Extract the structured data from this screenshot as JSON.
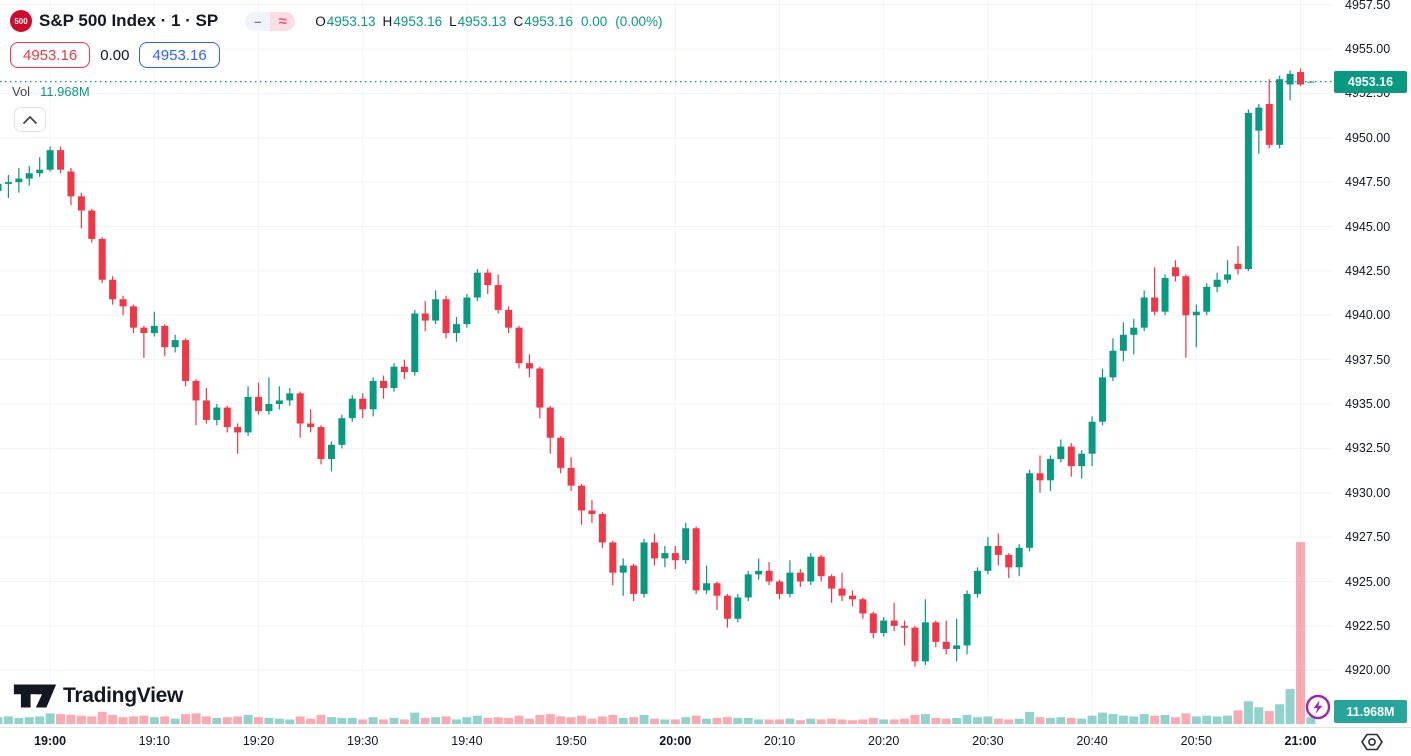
{
  "colors": {
    "up": "#089981",
    "down": "#f23645",
    "vol_up": "rgba(38,166,154,0.5)",
    "vol_down": "rgba(242,54,69,0.42)",
    "grid": "#f0f3fa",
    "axis_text": "#131722",
    "accent_blue": "#2962ff",
    "price_badge_bg": "#089981",
    "volume_badge_bg": "#26a69a",
    "current_price_line": "#089981",
    "logo_red": "#cf0a2c",
    "purple_icon": "#9c27b0"
  },
  "header": {
    "symbol_logo": "500",
    "title": "S&P 500 Index · 1 · SP",
    "pill_minus_icon": "–",
    "pill_wave_icon": "≈",
    "ohlc": {
      "o_label": "O",
      "o_value": "4953.13",
      "h_label": "H",
      "h_value": "4953.16",
      "l_label": "L",
      "l_value": "4953.13",
      "c_label": "C",
      "c_value": "4953.16",
      "change": "0.00",
      "change_pct": "(0.00%)"
    },
    "sell_price": "4953.16",
    "spread": "0.00",
    "buy_price": "4953.16",
    "vol_label": "Vol",
    "vol_value": "11.968M"
  },
  "watermark": "TradingView",
  "price_scale": {
    "current_badge": "4953.16",
    "volume_badge": "11.968M",
    "ticks": [
      {
        "label": "4957.50",
        "price": 4957.5
      },
      {
        "label": "4955.00",
        "price": 4955.0
      },
      {
        "label": "4952.50",
        "price": 4952.5
      },
      {
        "label": "4950.00",
        "price": 4950.0
      },
      {
        "label": "4947.50",
        "price": 4947.5
      },
      {
        "label": "4945.00",
        "price": 4945.0
      },
      {
        "label": "4942.50",
        "price": 4942.5
      },
      {
        "label": "4940.00",
        "price": 4940.0
      },
      {
        "label": "4937.50",
        "price": 4937.5
      },
      {
        "label": "4935.00",
        "price": 4935.0
      },
      {
        "label": "4932.50",
        "price": 4932.5
      },
      {
        "label": "4930.00",
        "price": 4930.0
      },
      {
        "label": "4927.50",
        "price": 4927.5
      },
      {
        "label": "4925.00",
        "price": 4925.0
      },
      {
        "label": "4922.50",
        "price": 4922.5
      },
      {
        "label": "4920.00",
        "price": 4920.0
      }
    ]
  },
  "time_scale": {
    "ticks": [
      {
        "label": "19:00",
        "bold": true,
        "index": 5
      },
      {
        "label": "19:10",
        "bold": false,
        "index": 15
      },
      {
        "label": "19:20",
        "bold": false,
        "index": 25
      },
      {
        "label": "19:30",
        "bold": false,
        "index": 35
      },
      {
        "label": "19:40",
        "bold": false,
        "index": 45
      },
      {
        "label": "19:50",
        "bold": false,
        "index": 55
      },
      {
        "label": "20:00",
        "bold": true,
        "index": 65
      },
      {
        "label": "20:10",
        "bold": false,
        "index": 75
      },
      {
        "label": "20:20",
        "bold": false,
        "index": 85
      },
      {
        "label": "20:30",
        "bold": false,
        "index": 95
      },
      {
        "label": "20:40",
        "bold": false,
        "index": 105
      },
      {
        "label": "20:50",
        "bold": false,
        "index": 115
      },
      {
        "label": "21:00",
        "bold": true,
        "index": 125
      }
    ]
  },
  "chart_data": {
    "type": "candlestick+volume",
    "title": "S&P 500 Index",
    "interval_minutes": 1,
    "exchange": "SP",
    "current_price": 4953.16,
    "current_volume_millions": 11.968,
    "open": 4953.13,
    "high": 4953.16,
    "low": 4953.13,
    "close": 4953.16,
    "change": 0.0,
    "change_pct": 0.0,
    "ylim": [
      4917.5,
      4958.3
    ],
    "y_tick_step": 2.5,
    "x_start_time": "18:55",
    "x_end_time": "21:01",
    "legend_position": "top-left",
    "grid": true,
    "candles_format": [
      "open",
      "high",
      "low",
      "close",
      "volume_millions"
    ],
    "candles": [
      [
        4947.0,
        4947.8,
        4946.4,
        4947.4,
        0.45
      ],
      [
        4947.4,
        4947.9,
        4946.6,
        4947.5,
        0.5
      ],
      [
        4947.5,
        4948.3,
        4946.9,
        4947.7,
        0.4
      ],
      [
        4947.7,
        4948.4,
        4947.3,
        4948.0,
        0.45
      ],
      [
        4948.0,
        4948.9,
        4947.8,
        4948.2,
        0.5
      ],
      [
        4948.2,
        4949.5,
        4948.1,
        4949.3,
        0.7
      ],
      [
        4949.3,
        4949.5,
        4948.0,
        4948.2,
        0.65
      ],
      [
        4948.1,
        4948.3,
        4946.2,
        4946.7,
        0.6
      ],
      [
        4946.7,
        4946.9,
        4944.9,
        4945.9,
        0.55
      ],
      [
        4945.9,
        4946.0,
        4944.1,
        4944.3,
        0.5
      ],
      [
        4944.3,
        4944.4,
        4941.8,
        4942.0,
        0.8
      ],
      [
        4942.0,
        4942.2,
        4940.6,
        4940.9,
        0.6
      ],
      [
        4940.9,
        4941.1,
        4940.0,
        4940.5,
        0.45
      ],
      [
        4940.5,
        4940.6,
        4939.0,
        4939.3,
        0.5
      ],
      [
        4939.3,
        4939.4,
        4937.6,
        4939.0,
        0.55
      ],
      [
        4939.0,
        4940.2,
        4938.8,
        4939.4,
        0.45
      ],
      [
        4939.4,
        4939.5,
        4937.7,
        4938.2,
        0.5
      ],
      [
        4938.2,
        4938.9,
        4937.9,
        4938.6,
        0.35
      ],
      [
        4938.6,
        4938.7,
        4936.0,
        4936.3,
        0.65
      ],
      [
        4936.3,
        4936.4,
        4933.8,
        4935.2,
        0.7
      ],
      [
        4935.2,
        4935.9,
        4933.9,
        4934.1,
        0.5
      ],
      [
        4934.1,
        4935.0,
        4933.8,
        4934.8,
        0.4
      ],
      [
        4934.8,
        4934.9,
        4933.4,
        4933.7,
        0.45
      ],
      [
        4933.7,
        4933.9,
        4932.2,
        4933.4,
        0.5
      ],
      [
        4933.4,
        4936.0,
        4933.2,
        4935.4,
        0.6
      ],
      [
        4935.4,
        4936.2,
        4934.4,
        4934.6,
        0.45
      ],
      [
        4934.6,
        4936.5,
        4934.4,
        4935.0,
        0.4
      ],
      [
        4935.0,
        4936.0,
        4934.7,
        4935.2,
        0.35
      ],
      [
        4935.2,
        4935.9,
        4934.9,
        4935.6,
        0.3
      ],
      [
        4935.6,
        4935.7,
        4933.1,
        4933.9,
        0.5
      ],
      [
        4933.9,
        4934.7,
        4933.4,
        4933.7,
        0.35
      ],
      [
        4933.7,
        4933.8,
        4931.6,
        4931.9,
        0.6
      ],
      [
        4931.9,
        4932.9,
        4931.2,
        4932.7,
        0.45
      ],
      [
        4932.7,
        4934.4,
        4932.5,
        4934.2,
        0.4
      ],
      [
        4934.2,
        4935.5,
        4934.0,
        4935.3,
        0.4
      ],
      [
        4935.3,
        4935.6,
        4934.2,
        4934.7,
        0.3
      ],
      [
        4934.7,
        4936.5,
        4934.3,
        4936.3,
        0.45
      ],
      [
        4936.3,
        4936.6,
        4935.3,
        4935.9,
        0.3
      ],
      [
        4935.9,
        4937.3,
        4935.7,
        4937.1,
        0.4
      ],
      [
        4937.1,
        4937.5,
        4936.4,
        4936.8,
        0.3
      ],
      [
        4936.8,
        4940.3,
        4936.6,
        4940.1,
        0.75
      ],
      [
        4940.1,
        4940.8,
        4939.1,
        4939.7,
        0.4
      ],
      [
        4939.7,
        4941.4,
        4939.5,
        4940.9,
        0.45
      ],
      [
        4940.9,
        4941.1,
        4938.7,
        4939.0,
        0.5
      ],
      [
        4939.0,
        4939.9,
        4938.5,
        4939.5,
        0.3
      ],
      [
        4939.5,
        4941.2,
        4939.3,
        4941.0,
        0.45
      ],
      [
        4941.0,
        4942.6,
        4940.8,
        4942.4,
        0.55
      ],
      [
        4942.4,
        4942.6,
        4941.2,
        4941.7,
        0.4
      ],
      [
        4941.7,
        4942.3,
        4940.1,
        4940.3,
        0.45
      ],
      [
        4940.3,
        4940.5,
        4939.0,
        4939.3,
        0.4
      ],
      [
        4939.3,
        4939.4,
        4937.0,
        4937.3,
        0.55
      ],
      [
        4937.3,
        4937.8,
        4936.5,
        4937.0,
        0.35
      ],
      [
        4937.0,
        4937.1,
        4934.2,
        4934.8,
        0.6
      ],
      [
        4934.8,
        4934.9,
        4932.2,
        4933.1,
        0.65
      ],
      [
        4933.1,
        4933.2,
        4931.1,
        4931.4,
        0.5
      ],
      [
        4931.4,
        4932.0,
        4930.1,
        4930.4,
        0.45
      ],
      [
        4930.4,
        4930.5,
        4928.2,
        4929.0,
        0.55
      ],
      [
        4929.0,
        4929.6,
        4928.3,
        4928.8,
        0.35
      ],
      [
        4928.8,
        4928.9,
        4926.9,
        4927.2,
        0.5
      ],
      [
        4927.2,
        4927.3,
        4924.8,
        4925.5,
        0.6
      ],
      [
        4925.5,
        4926.3,
        4924.2,
        4925.9,
        0.4
      ],
      [
        4925.9,
        4926.0,
        4923.9,
        4924.3,
        0.45
      ],
      [
        4924.3,
        4927.4,
        4924.1,
        4927.2,
        0.6
      ],
      [
        4927.2,
        4927.7,
        4925.9,
        4926.3,
        0.35
      ],
      [
        4926.3,
        4927.0,
        4925.8,
        4926.6,
        0.3
      ],
      [
        4926.6,
        4927.0,
        4925.7,
        4926.2,
        0.3
      ],
      [
        4926.2,
        4928.3,
        4926.0,
        4928.0,
        0.45
      ],
      [
        4928.0,
        4928.1,
        4924.3,
        4924.5,
        0.55
      ],
      [
        4924.5,
        4925.9,
        4924.3,
        4924.9,
        0.35
      ],
      [
        4924.9,
        4925.0,
        4923.4,
        4924.2,
        0.4
      ],
      [
        4924.2,
        4924.3,
        4922.4,
        4922.9,
        0.45
      ],
      [
        4922.9,
        4924.3,
        4922.7,
        4924.1,
        0.4
      ],
      [
        4924.1,
        4925.6,
        4923.9,
        4925.4,
        0.4
      ],
      [
        4925.4,
        4926.3,
        4925.1,
        4925.6,
        0.3
      ],
      [
        4925.6,
        4926.1,
        4924.8,
        4925.0,
        0.3
      ],
      [
        4925.0,
        4925.1,
        4924.0,
        4924.3,
        0.3
      ],
      [
        4924.3,
        4926.2,
        4924.1,
        4925.5,
        0.35
      ],
      [
        4925.5,
        4925.7,
        4924.7,
        4925.0,
        0.25
      ],
      [
        4925.0,
        4926.6,
        4924.8,
        4926.4,
        0.35
      ],
      [
        4926.4,
        4926.5,
        4925.0,
        4925.3,
        0.3
      ],
      [
        4925.3,
        4925.4,
        4923.8,
        4924.6,
        0.35
      ],
      [
        4924.6,
        4925.5,
        4923.9,
        4924.2,
        0.3
      ],
      [
        4924.2,
        4924.5,
        4923.6,
        4924.0,
        0.25
      ],
      [
        4924.0,
        4924.1,
        4922.9,
        4923.2,
        0.3
      ],
      [
        4923.2,
        4923.3,
        4921.8,
        4922.1,
        0.4
      ],
      [
        4922.1,
        4923.0,
        4921.9,
        4922.8,
        0.3
      ],
      [
        4922.8,
        4923.8,
        4922.2,
        4922.5,
        0.3
      ],
      [
        4922.5,
        4922.8,
        4921.4,
        4922.4,
        0.35
      ],
      [
        4922.4,
        4922.5,
        4920.2,
        4920.5,
        0.6
      ],
      [
        4920.5,
        4924.0,
        4920.3,
        4922.7,
        0.65
      ],
      [
        4922.7,
        4922.8,
        4921.3,
        4921.6,
        0.4
      ],
      [
        4921.6,
        4922.8,
        4920.9,
        4921.2,
        0.35
      ],
      [
        4921.2,
        4922.9,
        4920.5,
        4921.4,
        0.4
      ],
      [
        4921.4,
        4924.5,
        4920.9,
        4924.3,
        0.6
      ],
      [
        4924.3,
        4925.8,
        4924.1,
        4925.6,
        0.45
      ],
      [
        4925.6,
        4927.5,
        4925.4,
        4927.0,
        0.5
      ],
      [
        4927.0,
        4927.7,
        4925.9,
        4926.5,
        0.35
      ],
      [
        4926.5,
        4926.6,
        4925.2,
        4925.8,
        0.3
      ],
      [
        4925.8,
        4927.1,
        4925.3,
        4926.9,
        0.35
      ],
      [
        4926.9,
        4931.3,
        4926.7,
        4931.1,
        0.8
      ],
      [
        4931.1,
        4932.1,
        4930.0,
        4930.7,
        0.45
      ],
      [
        4930.7,
        4932.1,
        4930.1,
        4931.9,
        0.4
      ],
      [
        4931.9,
        4933.0,
        4931.7,
        4932.6,
        0.45
      ],
      [
        4932.6,
        4932.8,
        4930.9,
        4931.5,
        0.4
      ],
      [
        4931.5,
        4932.4,
        4930.8,
        4932.2,
        0.35
      ],
      [
        4932.2,
        4934.3,
        4931.5,
        4934.0,
        0.55
      ],
      [
        4934.0,
        4937.0,
        4933.8,
        4936.5,
        0.75
      ],
      [
        4936.5,
        4938.7,
        4936.3,
        4938.0,
        0.65
      ],
      [
        4938.0,
        4939.6,
        4937.4,
        4938.9,
        0.55
      ],
      [
        4938.9,
        4939.8,
        4937.8,
        4939.3,
        0.5
      ],
      [
        4939.3,
        4941.4,
        4939.1,
        4941.0,
        0.65
      ],
      [
        4941.0,
        4942.7,
        4940.0,
        4940.2,
        0.55
      ],
      [
        4940.2,
        4942.3,
        4940.0,
        4942.1,
        0.6
      ],
      [
        4942.7,
        4943.1,
        4941.9,
        4942.2,
        0.45
      ],
      [
        4942.2,
        4942.3,
        4937.6,
        4940.0,
        0.7
      ],
      [
        4940.0,
        4940.6,
        4938.2,
        4940.2,
        0.5
      ],
      [
        4940.2,
        4941.8,
        4940.0,
        4941.6,
        0.55
      ],
      [
        4941.6,
        4942.4,
        4941.3,
        4942.0,
        0.5
      ],
      [
        4942.0,
        4943.1,
        4941.8,
        4942.3,
        0.55
      ],
      [
        4942.9,
        4943.9,
        4942.3,
        4942.6,
        0.9
      ],
      [
        4942.6,
        4951.6,
        4942.5,
        4951.4,
        1.5
      ],
      [
        4950.4,
        4951.9,
        4949.1,
        4951.7,
        1.1
      ],
      [
        4951.9,
        4953.3,
        4949.4,
        4949.6,
        0.85
      ],
      [
        4949.6,
        4953.5,
        4949.4,
        4953.3,
        1.3
      ],
      [
        4953.0,
        4953.8,
        4952.1,
        4953.6,
        2.3
      ],
      [
        4953.7,
        4953.9,
        4952.9,
        4953.0,
        11.968
      ],
      [
        4953.13,
        4953.16,
        4953.13,
        4953.16,
        0.45
      ]
    ]
  }
}
